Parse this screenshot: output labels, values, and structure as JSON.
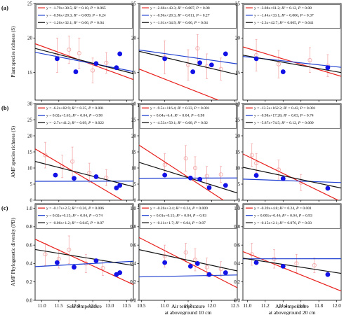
{
  "figure": {
    "row_labels": [
      "(a)",
      "(b)",
      "(c)"
    ],
    "y_labels": [
      "Plant species richness (S)",
      "AMF species richness (S)",
      "AMF Phylogenetic diversity (PD)"
    ],
    "x_labels": [
      [
        "Soil temperature"
      ],
      [
        "Air temperature",
        "at aboveground 10 cm"
      ],
      [
        "Air temperature",
        "at aboveground 20 cm"
      ]
    ]
  },
  "colors": {
    "red": "#e8201c",
    "blue": "#1f3fd0",
    "black": "#111111",
    "point_blue": "#1212e6",
    "point_pink": "#f2a3a3"
  },
  "chart_data": [
    {
      "type": "scatter",
      "panel": "a-1",
      "xlim": [
        10.8,
        13.7
      ],
      "ylim": [
        11,
        25
      ],
      "xticks": [
        "11.0",
        "11.5",
        "12.0",
        "12.5",
        "13.0",
        "13.5"
      ],
      "xtick_vals": [
        11.0,
        11.5,
        12.0,
        12.5,
        13.0,
        13.5
      ],
      "yticks": [
        "15",
        "20",
        "25"
      ],
      "ytick_vals": [
        15,
        20,
        25
      ],
      "lines": [
        {
          "color": "red",
          "label": "y = -1.79x+38.5; R² = 0.10, P = 0.065",
          "slope": -1.79,
          "intercept": 38.5
        },
        {
          "color": "blue",
          "label": "y = -0.96x+28.3; R² = 0.009, P = 0.24",
          "slope": -0.96,
          "intercept": 28.3
        },
        {
          "color": "black",
          "label": "y = -1.26x+32.1; R² = 0.06, P = 0.04",
          "slope": -1.26,
          "intercept": 32.1
        }
      ],
      "blue_points": [
        [
          11.45,
          17.0
        ],
        [
          12.0,
          15.1
        ],
        [
          12.6,
          16.3
        ],
        [
          13.2,
          15.7
        ],
        [
          13.3,
          17.7
        ]
      ],
      "pink_points": [
        [
          11.45,
          17.5,
          2.5
        ],
        [
          11.8,
          18.3,
          2.0
        ],
        [
          12.1,
          17.8,
          2.2
        ],
        [
          12.5,
          15.3,
          1.8
        ],
        [
          12.9,
          16.4,
          1.5
        ]
      ]
    },
    {
      "type": "scatter",
      "panel": "a-2",
      "xlim": [
        10.45,
        12.55
      ],
      "ylim": [
        11,
        25
      ],
      "xticks": [
        "10.5",
        "11.0",
        "11.5",
        "12.0",
        "12.5"
      ],
      "xtick_vals": [
        10.5,
        11.0,
        11.5,
        12.0,
        12.5
      ],
      "yticks": [
        "15",
        "20",
        "25"
      ],
      "ytick_vals": [
        15,
        20,
        25
      ],
      "lines": [
        {
          "color": "red",
          "label": "y = -2.66x+43.3; R² = 0.087, P = 0.08",
          "slope": -2.66,
          "intercept": 43.3
        },
        {
          "color": "blue",
          "label": "y = -0.96x+28.3; R² = 0.011, P = 0.27",
          "slope": -0.96,
          "intercept": 28.3
        },
        {
          "color": "black",
          "label": "y = -1.61x+34.9; R² = 0.06, P = 0.04",
          "slope": -1.61,
          "intercept": 34.9
        }
      ],
      "blue_points": [
        [
          11.0,
          17.0
        ],
        [
          11.6,
          15.1
        ],
        [
          11.75,
          16.4
        ],
        [
          12.0,
          16.1
        ],
        [
          12.3,
          17.7
        ]
      ],
      "pink_points": [
        [
          11.0,
          17.2,
          2.4
        ],
        [
          11.5,
          16.1,
          2.2
        ],
        [
          11.7,
          18.5,
          2.0
        ],
        [
          11.9,
          15.9,
          1.8
        ],
        [
          12.2,
          15.5,
          1.6
        ]
      ]
    },
    {
      "type": "scatter",
      "panel": "a-3",
      "xlim": [
        10.95,
        12.05
      ],
      "ylim": [
        11,
        25
      ],
      "xticks": [
        "11.0",
        "11.2",
        "11.4",
        "11.6",
        "11.8",
        "12.0"
      ],
      "xtick_vals": [
        11.0,
        11.2,
        11.4,
        11.6,
        11.8,
        12.0
      ],
      "yticks": [
        "15",
        "20",
        "25"
      ],
      "ytick_vals": [
        15,
        20,
        25
      ],
      "lines": [
        {
          "color": "red",
          "label": "y = -3.88x+61.2; R² = 0.12, P = 0.08",
          "slope": -3.88,
          "intercept": 61.2
        },
        {
          "color": "blue",
          "label": "y = -1.44x+33.1; R² = 0.006, P = 0.37",
          "slope": -1.44,
          "intercept": 33.1
        },
        {
          "color": "black",
          "label": "y = -2.3x+42.7; R² = 0.065, P = 0.041",
          "slope": -2.3,
          "intercept": 42.7
        }
      ],
      "blue_points": [
        [
          11.1,
          17.0
        ],
        [
          11.4,
          15.1
        ],
        [
          11.9,
          15.7
        ]
      ],
      "pink_points": [
        [
          11.1,
          17.5,
          2.3
        ],
        [
          11.35,
          16.2,
          2.0
        ],
        [
          11.7,
          16.8,
          1.8
        ],
        [
          11.9,
          16.0,
          1.6
        ]
      ]
    },
    {
      "type": "scatter",
      "panel": "b-1",
      "xlim": [
        10.8,
        13.7
      ],
      "ylim": [
        0,
        30
      ],
      "xticks": [
        "11.0",
        "11.5",
        "12.0",
        "12.5",
        "13.0",
        "13.5"
      ],
      "xtick_vals": [
        11.0,
        11.5,
        12.0,
        12.5,
        13.0,
        13.5
      ],
      "yticks": [
        "0",
        "5",
        "10",
        "15",
        "20",
        "25",
        "30"
      ],
      "ytick_vals": [
        0,
        5,
        10,
        15,
        20,
        25,
        30
      ],
      "lines": [
        {
          "color": "red",
          "label": "y = -6.2x+82.9; R² = 0.35, P = 0.001",
          "slope": -6.2,
          "intercept": 82.9
        },
        {
          "color": "blue",
          "label": "y = 0.02x+5.65; R² = 0.04, P = 0.98",
          "slope": 0.02,
          "intercept": 5.65
        },
        {
          "color": "black",
          "label": "y = -2.7x+41.2; R² = 0.09, P = 0.022",
          "slope": -2.7,
          "intercept": 41.2
        }
      ],
      "blue_points": [
        [
          11.4,
          7.8
        ],
        [
          11.95,
          6.8
        ],
        [
          12.6,
          7.3
        ],
        [
          13.2,
          3.8
        ],
        [
          13.3,
          4.6
        ]
      ],
      "pink_points": [
        [
          11.1,
          14.0,
          4.0
        ],
        [
          11.6,
          10.5,
          3.5
        ],
        [
          11.9,
          12.0,
          4.5
        ],
        [
          12.4,
          8.5,
          3.0
        ],
        [
          12.9,
          7.0,
          2.5
        ]
      ]
    },
    {
      "type": "scatter",
      "panel": "b-2",
      "xlim": [
        10.45,
        12.55
      ],
      "ylim": [
        0,
        30
      ],
      "xticks": [
        "10.5",
        "11.0",
        "11.5",
        "12.0",
        "12.5"
      ],
      "xtick_vals": [
        10.5,
        11.0,
        11.5,
        12.0,
        12.5
      ],
      "yticks": [
        "0",
        "5",
        "10",
        "15",
        "20",
        "25",
        "30"
      ],
      "ytick_vals": [
        0,
        5,
        10,
        15,
        20,
        25,
        30
      ],
      "lines": [
        {
          "color": "red",
          "label": "y = -9.5x+116.4; R² = 0.33, P = 0.001",
          "slope": -9.5,
          "intercept": 116.4
        },
        {
          "color": "blue",
          "label": "y = 0.04x+6.4; R² = 0.04, P = 0.98",
          "slope": 0.04,
          "intercept": 6.4
        },
        {
          "color": "black",
          "label": "y = -4.53x+59.1; R² = 0.08, P = 0.02",
          "slope": -4.53,
          "intercept": 59.1
        }
      ],
      "blue_points": [
        [
          11.0,
          7.8
        ],
        [
          11.55,
          6.9
        ],
        [
          11.75,
          6.5
        ],
        [
          11.95,
          3.9
        ],
        [
          12.3,
          4.6
        ]
      ],
      "pink_points": [
        [
          11.0,
          11.0,
          3.5
        ],
        [
          11.45,
          13.0,
          4.0
        ],
        [
          11.65,
          10.0,
          3.5
        ],
        [
          11.9,
          7.5,
          3.0
        ],
        [
          12.2,
          8.0,
          2.5
        ]
      ]
    },
    {
      "type": "scatter",
      "panel": "b-3",
      "xlim": [
        10.95,
        12.05
      ],
      "ylim": [
        0,
        30
      ],
      "xticks": [
        "11.0",
        "11.2",
        "11.4",
        "11.6",
        "11.8",
        "12.0"
      ],
      "xtick_vals": [
        11.0,
        11.2,
        11.4,
        11.6,
        11.8,
        12.0
      ],
      "yticks": [
        "0",
        "5",
        "10",
        "15",
        "20",
        "25",
        "30"
      ],
      "ytick_vals": [
        0,
        5,
        10,
        15,
        20,
        25,
        30
      ],
      "lines": [
        {
          "color": "red",
          "label": "y = -13.5x+162.2; R² = 0.42, P = 0.001",
          "slope": -13.5,
          "intercept": 162.2
        },
        {
          "color": "blue",
          "label": "y = -0.98x+17.28; R² = 0.03, P = 0.74",
          "slope": -0.98,
          "intercept": 17.28
        },
        {
          "color": "black",
          "label": "y = -5.87x+74.5; R² = 0.12, P = 0.009",
          "slope": -5.87,
          "intercept": 74.5
        }
      ],
      "blue_points": [
        [
          11.1,
          7.7
        ],
        [
          11.4,
          6.7
        ],
        [
          11.9,
          3.7
        ]
      ],
      "pink_points": [
        [
          11.05,
          14.0,
          3.5
        ],
        [
          11.1,
          11.5,
          3.0
        ],
        [
          11.35,
          9.5,
          3.0
        ],
        [
          11.6,
          5.5,
          2.5
        ]
      ]
    },
    {
      "type": "scatter",
      "panel": "c-1",
      "xlim": [
        10.8,
        13.7
      ],
      "ylim": [
        0,
        1.05
      ],
      "xticks": [
        "11.0",
        "11.5",
        "12.0",
        "12.5",
        "13.0",
        "13.5"
      ],
      "xtick_vals": [
        11.0,
        11.5,
        12.0,
        12.5,
        13.0,
        13.5
      ],
      "yticks": [
        "0.0",
        "0.2",
        "0.4",
        "0.6",
        "0.8",
        "1.0"
      ],
      "ytick_vals": [
        0,
        0.2,
        0.4,
        0.6,
        0.8,
        1.0
      ],
      "lines": [
        {
          "color": "red",
          "label": "y = -0.17x+2.5; R² = 0.26, P = 0.006",
          "slope": -0.17,
          "intercept": 2.5
        },
        {
          "color": "blue",
          "label": "y = 0.02x+0.15; R² = 0.04, P = 0.74",
          "slope": 0.02,
          "intercept": 0.15
        },
        {
          "color": "black",
          "label": "y = -0.06x+1.2; R² = 0.045, P = 0.07",
          "slope": -0.06,
          "intercept": 1.2
        }
      ],
      "blue_points": [
        [
          11.45,
          0.41
        ],
        [
          11.95,
          0.36
        ],
        [
          12.6,
          0.43
        ],
        [
          13.2,
          0.28
        ],
        [
          13.3,
          0.3
        ]
      ],
      "pink_points": [
        [
          11.1,
          0.5,
          0.12
        ],
        [
          11.5,
          0.45,
          0.1
        ],
        [
          11.8,
          0.55,
          0.15
        ],
        [
          12.3,
          0.4,
          0.1
        ],
        [
          12.8,
          0.35,
          0.08
        ]
      ]
    },
    {
      "type": "scatter",
      "panel": "c-2",
      "xlim": [
        10.45,
        12.55
      ],
      "ylim": [
        0,
        1.05
      ],
      "xticks": [
        "10.5",
        "11.0",
        "11.5",
        "12.0",
        "12.5"
      ],
      "xtick_vals": [
        10.5,
        11.0,
        11.5,
        12.0,
        12.5
      ],
      "yticks": [
        "0.0",
        "0.2",
        "0.4",
        "0.6",
        "0.8",
        "1.0"
      ],
      "ytick_vals": [
        0,
        0.2,
        0.4,
        0.6,
        0.8,
        1.0
      ],
      "lines": [
        {
          "color": "red",
          "label": "y = -0.26x+3.4; R² = 0.24, P = 0.009",
          "slope": -0.26,
          "intercept": 3.4
        },
        {
          "color": "blue",
          "label": "y = 0.01x+0.15; R² = 0.04, P = 0.83",
          "slope": 0.01,
          "intercept": 0.15
        },
        {
          "color": "black",
          "label": "y = -0.11x+1.7; R² = 0.04, P = 0.07",
          "slope": -0.11,
          "intercept": 1.7
        }
      ],
      "blue_points": [
        [
          11.0,
          0.41
        ],
        [
          11.55,
          0.37
        ],
        [
          11.7,
          0.4
        ],
        [
          11.95,
          0.28
        ],
        [
          12.3,
          0.3
        ]
      ],
      "pink_points": [
        [
          11.0,
          0.48,
          0.12
        ],
        [
          11.45,
          0.52,
          0.1
        ],
        [
          11.65,
          0.44,
          0.12
        ],
        [
          11.9,
          0.36,
          0.1
        ],
        [
          12.2,
          0.34,
          0.08
        ]
      ]
    },
    {
      "type": "scatter",
      "panel": "c-3",
      "xlim": [
        10.95,
        12.05
      ],
      "ylim": [
        0,
        1.05
      ],
      "xticks": [
        "11.0",
        "11.2",
        "11.4",
        "11.6",
        "11.8",
        "12.0"
      ],
      "xtick_vals": [
        11.0,
        11.2,
        11.4,
        11.6,
        11.8,
        12.0
      ],
      "yticks": [
        "0.0",
        "0.2",
        "0.4",
        "0.6",
        "0.8",
        "1.0"
      ],
      "ytick_vals": [
        0,
        0.2,
        0.4,
        0.6,
        0.8,
        1.0
      ],
      "lines": [
        {
          "color": "red",
          "label": "y = -0.39x+4.8; R² = 0.24, P = 0.001",
          "slope": -0.39,
          "intercept": 4.8
        },
        {
          "color": "blue",
          "label": "y = 0.001x+0.44; R² = 0.04, P = 0.93",
          "slope": 0.001,
          "intercept": 0.44
        },
        {
          "color": "black",
          "label": "y = -0.15x+2.1; R² = 0.076, P = 0.03",
          "slope": -0.15,
          "intercept": 2.1
        }
      ],
      "blue_points": [
        [
          11.1,
          0.41
        ],
        [
          11.4,
          0.37
        ],
        [
          11.9,
          0.28
        ]
      ],
      "pink_points": [
        [
          11.05,
          0.5,
          0.12
        ],
        [
          11.3,
          0.45,
          0.1
        ],
        [
          11.55,
          0.4,
          0.1
        ],
        [
          11.75,
          0.38,
          0.08
        ]
      ]
    }
  ]
}
